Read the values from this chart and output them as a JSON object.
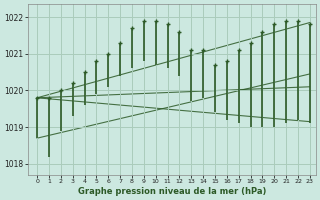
{
  "title": "Graphe pression niveau de la mer (hPa)",
  "bg_color": "#cce8e0",
  "grid_color": "#aaccbb",
  "line_color": "#2d5a27",
  "hours": [
    0,
    1,
    2,
    3,
    4,
    5,
    6,
    7,
    8,
    9,
    10,
    11,
    12,
    13,
    14,
    15,
    16,
    17,
    18,
    19,
    20,
    21,
    22,
    23
  ],
  "val_max": [
    1019.8,
    1019.8,
    1020.0,
    1020.2,
    1020.5,
    1020.8,
    1021.0,
    1021.3,
    1021.7,
    1021.9,
    1021.9,
    1021.8,
    1021.6,
    1021.1,
    1021.1,
    1020.7,
    1020.8,
    1021.1,
    1021.3,
    1021.6,
    1021.8,
    1021.9,
    1021.9,
    1021.8
  ],
  "val_min": [
    1018.7,
    1018.2,
    1018.9,
    1019.3,
    1019.6,
    1019.9,
    1020.1,
    1020.4,
    1020.6,
    1020.8,
    1020.7,
    1020.6,
    1020.4,
    1019.7,
    1019.8,
    1019.4,
    1019.2,
    1019.1,
    1019.0,
    1019.0,
    1019.0,
    1019.1,
    1019.2,
    1019.1
  ],
  "ylim_min": 1017.7,
  "ylim_max": 1022.35,
  "yticks": [
    1018,
    1019,
    1020,
    1021,
    1022
  ],
  "trend_lines": [
    {
      "x": [
        0,
        23
      ],
      "y": [
        1019.8,
        1021.85
      ]
    },
    {
      "x": [
        0,
        23
      ],
      "y": [
        1019.8,
        1020.1
      ]
    },
    {
      "x": [
        0,
        23
      ],
      "y": [
        1018.7,
        1020.45
      ]
    },
    {
      "x": [
        0,
        23
      ],
      "y": [
        1019.8,
        1019.15
      ]
    }
  ]
}
